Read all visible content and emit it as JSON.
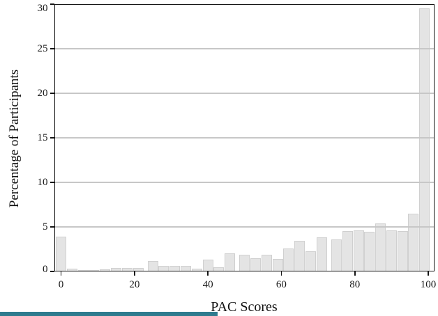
{
  "figure": {
    "background": "#ffffff",
    "accent_strip_color": "#2e7b8e",
    "spine_color": "#151515",
    "grid_color": "#c7c7c7"
  },
  "chart_data": {
    "type": "bar",
    "title": "",
    "xlabel": "PAC Scores",
    "ylabel": "Percentage of Participants",
    "x": [
      0,
      3,
      6,
      9,
      12,
      15,
      18,
      21,
      25,
      28,
      31,
      34,
      37,
      40,
      43,
      46,
      50,
      53,
      56,
      59,
      62,
      65,
      68,
      71,
      75,
      78,
      81,
      84,
      87,
      90,
      93,
      96,
      99
    ],
    "values": [
      3.9,
      0.35,
      0.15,
      0.15,
      0.25,
      0.4,
      0.4,
      0.4,
      1.2,
      0.6,
      0.65,
      0.6,
      0.35,
      1.3,
      0.5,
      2.0,
      1.85,
      1.5,
      1.9,
      1.4,
      2.6,
      3.4,
      2.3,
      3.85,
      3.6,
      4.5,
      4.6,
      4.45,
      5.4,
      4.6,
      4.5,
      6.5,
      29.5
    ],
    "xticks": [
      0,
      20,
      40,
      60,
      80,
      100
    ],
    "yticks": [
      0,
      5,
      10,
      15,
      20,
      25,
      30
    ],
    "xlim": [
      -1.9,
      101.7
    ],
    "ylim": [
      0,
      30
    ],
    "grid": "horizontal-only",
    "legend": "none",
    "bar_color": "#e4e4e4",
    "bar_edge_color": "#d0d0d0",
    "bar_width_units": 2.85
  }
}
